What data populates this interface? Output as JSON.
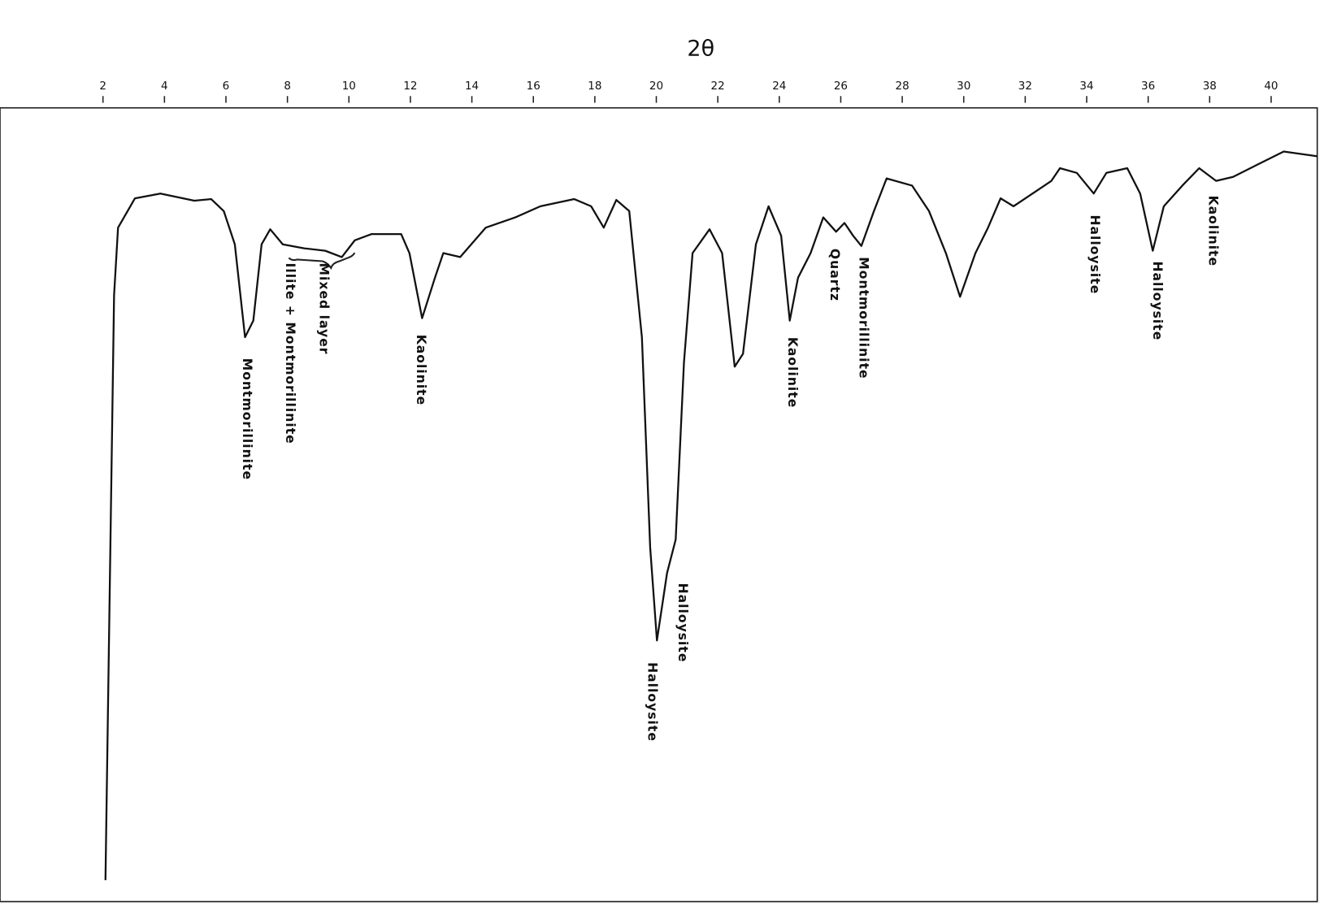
{
  "chart_data": {
    "type": "line",
    "xlabel": "2θ",
    "color": "#111111",
    "xlim": [
      -1.35,
      41.5
    ],
    "ylim": [
      0,
      100
    ],
    "xticks": [
      2,
      4,
      6,
      8,
      10,
      12,
      14,
      16,
      18,
      20,
      22,
      24,
      26,
      28,
      30,
      32,
      34,
      36,
      38,
      40
    ],
    "x": [
      2.08,
      2.36,
      2.49,
      3.04,
      3.87,
      4.97,
      5.52,
      5.93,
      6.29,
      6.62,
      6.89,
      7.16,
      7.44,
      7.85,
      8.54,
      9.23,
      9.77,
      10.19,
      10.74,
      11.7,
      11.97,
      12.38,
      12.8,
      13.07,
      13.62,
      14.45,
      15.41,
      16.23,
      17.33,
      17.88,
      18.29,
      18.7,
      19.12,
      19.53,
      19.8,
      20.02,
      20.35,
      20.63,
      20.9,
      21.18,
      21.73,
      22.14,
      22.55,
      22.82,
      23.24,
      23.65,
      24.06,
      24.34,
      24.61,
      25.02,
      25.43,
      25.85,
      26.12,
      26.4,
      26.67,
      27.08,
      27.49,
      28.32,
      28.87,
      29.42,
      29.88,
      30.38,
      30.79,
      31.2,
      31.62,
      32.16,
      32.85,
      33.13,
      33.68,
      34.23,
      34.64,
      35.32,
      35.74,
      36.15,
      36.51,
      37.11,
      37.66,
      38.21,
      38.76,
      39.58,
      40.41,
      41.51
    ],
    "values": [
      2.7,
      76.4,
      84.9,
      88.6,
      89.2,
      88.3,
      88.5,
      87.0,
      82.8,
      71.1,
      73.2,
      82.8,
      84.7,
      82.8,
      82.3,
      82.0,
      81.2,
      83.3,
      84.1,
      84.1,
      81.7,
      73.5,
      78.6,
      81.7,
      81.2,
      84.9,
      86.2,
      87.6,
      88.5,
      87.6,
      84.9,
      88.4,
      87.0,
      71.1,
      44.6,
      32.9,
      41.4,
      45.6,
      67.9,
      81.7,
      84.7,
      81.7,
      67.4,
      69.0,
      82.8,
      87.6,
      83.9,
      73.2,
      78.6,
      81.7,
      86.2,
      84.4,
      85.5,
      83.9,
      82.6,
      87.0,
      91.1,
      90.2,
      87.0,
      81.7,
      76.2,
      81.7,
      84.9,
      88.6,
      87.6,
      89.0,
      90.8,
      92.4,
      91.8,
      89.2,
      91.8,
      92.4,
      89.2,
      82.0,
      87.6,
      90.2,
      92.4,
      90.8,
      91.3,
      92.9,
      94.5,
      93.9
    ],
    "annotations": [
      "Montmorillinite",
      "Illite + Montmorillinite",
      "Mixed layer",
      "Kaolinite",
      "Halloysite",
      "Halloysite",
      "Kaolinite",
      "Quartz",
      "Montmorillinite",
      "Halloysite",
      "Halloysite",
      "Kaolinite"
    ]
  }
}
